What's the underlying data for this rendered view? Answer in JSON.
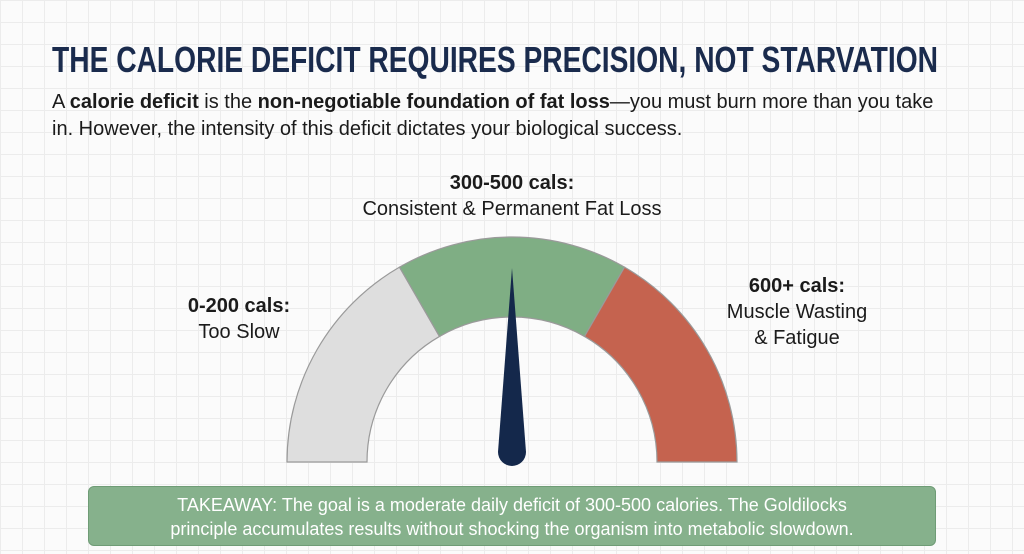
{
  "header": {
    "title": "THE CALORIE DEFICIT REQUIRES PRECISION, NOT STARVATION"
  },
  "intro": [
    {
      "text": "A ",
      "bold": false
    },
    {
      "text": "calorie deficit",
      "bold": true
    },
    {
      "text": " is the ",
      "bold": false
    },
    {
      "text": "non-negotiable foundation of fat loss",
      "bold": true
    },
    {
      "text": "—you must burn more than you take in. However, the intensity of this deficit dictates your biological success.",
      "bold": false
    }
  ],
  "gauge": {
    "segments": [
      {
        "range": "0-200 cals:",
        "description": [
          "Too Slow"
        ],
        "color": "#dedede"
      },
      {
        "range": "300-500 cals:",
        "description": [
          "Consistent & Permanent Fat Loss"
        ],
        "color": "#7fae84"
      },
      {
        "range": "600+ cals:",
        "description": [
          "Muscle Wasting",
          "& Fatigue"
        ],
        "color": "#c5634f"
      }
    ]
  },
  "takeaway": {
    "lines": [
      "TAKEAWAY: The goal is a moderate daily deficit of 300-500 calories. The Goldilocks",
      "principle accumulates results without shocking the organism into metabolic slowdown."
    ]
  }
}
